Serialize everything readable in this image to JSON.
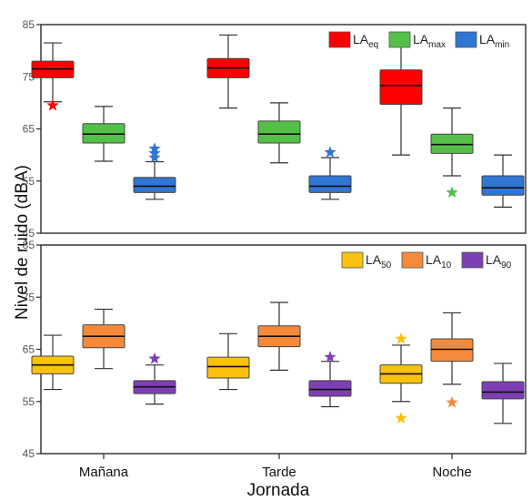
{
  "chart_data": {
    "type": "boxplot",
    "ylabel": "Nivel de ruido (dBA)",
    "xlabel": "Jornada",
    "categories": [
      "Mañana",
      "Tarde",
      "Noche"
    ],
    "panels": [
      {
        "name": "top",
        "ylim": [
          45,
          85
        ],
        "yticks": [
          45,
          55,
          65,
          75,
          85
        ],
        "legend_position": "top-right",
        "series": [
          {
            "name": "LA",
            "sub": "eq",
            "color": "#ff0000",
            "boxes": [
              {
                "whisker_low": 70.2,
                "q1": 74.8,
                "median": 76.5,
                "q3": 78.0,
                "whisker_high": 81.5,
                "outliers": [
                  69.5
                ]
              },
              {
                "whisker_low": 69.0,
                "q1": 74.8,
                "median": 76.7,
                "q3": 78.5,
                "whisker_high": 83.0,
                "outliers": []
              },
              {
                "whisker_low": 60.0,
                "q1": 69.7,
                "median": 73.3,
                "q3": 76.3,
                "whisker_high": 83.5,
                "outliers": []
              }
            ]
          },
          {
            "name": "LA",
            "sub": "max",
            "color": "#55c049",
            "boxes": [
              {
                "whisker_low": 58.8,
                "q1": 62.3,
                "median": 64.0,
                "q3": 66.0,
                "whisker_high": 69.3,
                "outliers": []
              },
              {
                "whisker_low": 58.5,
                "q1": 62.3,
                "median": 64.0,
                "q3": 66.5,
                "whisker_high": 70.0,
                "outliers": []
              },
              {
                "whisker_low": 56.0,
                "q1": 60.3,
                "median": 62.0,
                "q3": 64.0,
                "whisker_high": 69.0,
                "outliers": [
                  52.8
                ]
              }
            ]
          },
          {
            "name": "LA",
            "sub": "min",
            "color": "#3076d4",
            "boxes": [
              {
                "whisker_low": 51.5,
                "q1": 52.8,
                "median": 54.0,
                "q3": 55.7,
                "whisker_high": 58.7,
                "outliers": [
                  59.5,
                  60.3,
                  61.2
                ]
              },
              {
                "whisker_low": 51.5,
                "q1": 52.8,
                "median": 54.0,
                "q3": 56.0,
                "whisker_high": 59.5,
                "outliers": [
                  60.5
                ]
              },
              {
                "whisker_low": 50.0,
                "q1": 52.3,
                "median": 53.7,
                "q3": 56.0,
                "whisker_high": 60.0,
                "outliers": []
              }
            ]
          }
        ]
      },
      {
        "name": "bottom",
        "ylim": [
          45,
          85
        ],
        "yticks": [
          45,
          55,
          65,
          75,
          85
        ],
        "legend_position": "top-right",
        "series": [
          {
            "name": "LA",
            "sub": "50",
            "color": "#f8c20f",
            "boxes": [
              {
                "whisker_low": 57.3,
                "q1": 60.3,
                "median": 62.0,
                "q3": 63.7,
                "whisker_high": 67.7,
                "outliers": []
              },
              {
                "whisker_low": 57.3,
                "q1": 59.5,
                "median": 61.7,
                "q3": 63.5,
                "whisker_high": 68.0,
                "outliers": []
              },
              {
                "whisker_low": 55.0,
                "q1": 58.5,
                "median": 60.3,
                "q3": 62.0,
                "whisker_high": 65.8,
                "outliers": [
                  51.8,
                  67.0
                ]
              }
            ]
          },
          {
            "name": "LA",
            "sub": "10",
            "color": "#f58a3a",
            "boxes": [
              {
                "whisker_low": 61.3,
                "q1": 65.3,
                "median": 67.5,
                "q3": 69.7,
                "whisker_high": 72.7,
                "outliers": []
              },
              {
                "whisker_low": 61.0,
                "q1": 65.5,
                "median": 67.5,
                "q3": 69.5,
                "whisker_high": 74.0,
                "outliers": []
              },
              {
                "whisker_low": 58.3,
                "q1": 62.7,
                "median": 65.0,
                "q3": 67.0,
                "whisker_high": 72.0,
                "outliers": [
                  54.8
                ]
              }
            ]
          },
          {
            "name": "LA",
            "sub": "90",
            "color": "#7e3fb5",
            "boxes": [
              {
                "whisker_low": 54.5,
                "q1": 56.5,
                "median": 57.8,
                "q3": 59.0,
                "whisker_high": 62.0,
                "outliers": [
                  63.2
                ]
              },
              {
                "whisker_low": 54.0,
                "q1": 56.0,
                "median": 57.3,
                "q3": 59.0,
                "whisker_high": 62.7,
                "outliers": [
                  63.5
                ]
              },
              {
                "whisker_low": 50.8,
                "q1": 55.5,
                "median": 56.8,
                "q3": 58.8,
                "whisker_high": 62.3,
                "outliers": []
              }
            ]
          }
        ]
      }
    ]
  }
}
